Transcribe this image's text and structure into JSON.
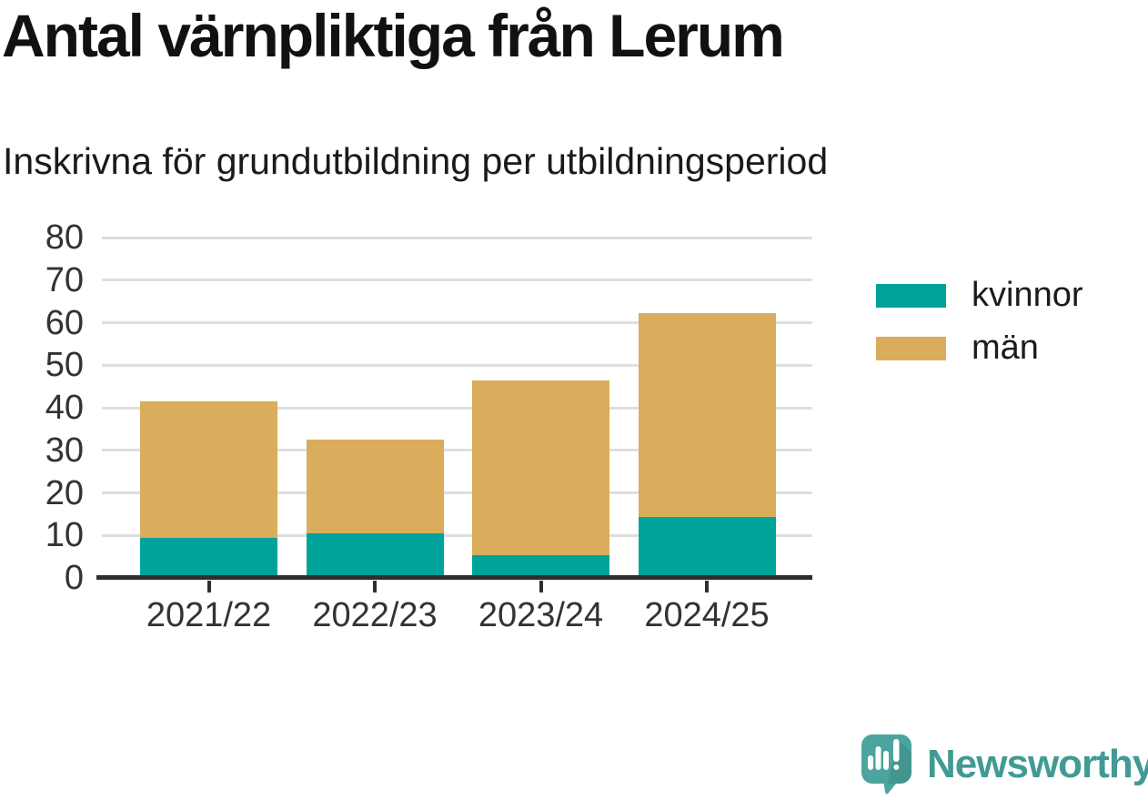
{
  "header": {
    "title": "Antal värnpliktiga från Lerum",
    "subtitle": "Inskrivna för grundutbildning per utbildningsperiod"
  },
  "chart_data": {
    "type": "bar",
    "stacked": true,
    "title": "Antal värnpliktiga från Lerum",
    "subtitle": "Inskrivna för grundutbildning per utbildningsperiod",
    "categories": [
      "2021/22",
      "2022/23",
      "2023/24",
      "2024/25"
    ],
    "series": [
      {
        "name": "kvinnor",
        "color": "#00a39a",
        "values": [
          9,
          10,
          5,
          14
        ]
      },
      {
        "name": "män",
        "color": "#d9ad5b",
        "values": [
          32,
          22,
          41,
          48
        ]
      }
    ],
    "stack_totals": [
      41,
      32,
      46,
      62
    ],
    "xlabel": "",
    "ylabel": "",
    "ylim": [
      0,
      80
    ],
    "yticks": [
      0,
      10,
      20,
      30,
      40,
      50,
      60,
      70,
      80
    ],
    "grid": true,
    "legend_position": "right-top"
  },
  "branding": {
    "wordmark": "Newsworthy",
    "wordmark_color": "#429a94",
    "icon": "newsworthy-chart-speech-bubble-icon",
    "icon_color": "#4ba49e"
  },
  "colors": {
    "background": "#ffffff",
    "title_text": "#111111",
    "axis_line": "#2e2e2e",
    "tick_label": "#333333",
    "gridline": "#dedede"
  }
}
